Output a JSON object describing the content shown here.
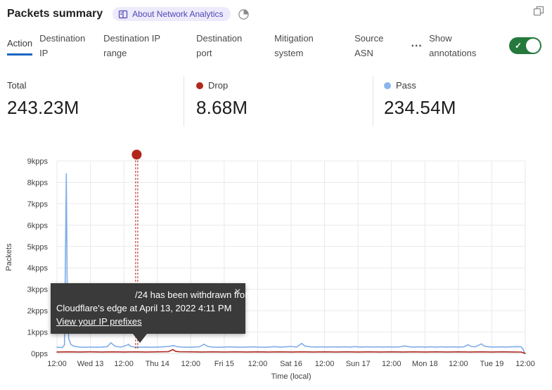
{
  "header": {
    "title": "Packets summary",
    "about_badge": "About Network Analytics"
  },
  "icons": {
    "check": "✓",
    "close": "✕",
    "ellipsis": "⋯"
  },
  "colors": {
    "accent_blue": "#1a66c2",
    "toggle_green": "#25793d",
    "drop_red": "#b2271c",
    "pass_blue": "#8ab5ec",
    "tooltip_bg": "#3a3a3a"
  },
  "tabs": {
    "items": [
      {
        "label": "Action",
        "active": true
      },
      {
        "label": "Destination IP",
        "active": false
      },
      {
        "label": "Destination IP range",
        "active": false
      },
      {
        "label": "Destination port",
        "active": false
      },
      {
        "label": "Mitigation system",
        "active": false
      },
      {
        "label": "Source ASN",
        "active": false
      }
    ],
    "more": "⋯",
    "show_annotations": "Show annotations",
    "annotations_on": true
  },
  "stats": {
    "total": {
      "label": "Total",
      "value": "243.23M"
    },
    "drop": {
      "label": "Drop",
      "value": "8.68M",
      "color": "#b2271c"
    },
    "pass": {
      "label": "Pass",
      "value": "234.54M",
      "color": "#8ab5ec"
    }
  },
  "annotation_tooltip": {
    "line1": "/24 has been withdrawn from",
    "line2": "Cloudflare's edge at April 13, 2022 4:11 PM",
    "link": "View your IP prefixes"
  },
  "chart_data": {
    "type": "line",
    "title": "Packets summary",
    "xlabel": "Time (local)",
    "ylabel": "Packets",
    "grid": true,
    "x_unit": "hours from Tue Apr 12 2022 12:00 local",
    "x_range_hours": [
      0,
      168
    ],
    "ylim_pps": [
      0,
      9000
    ],
    "x_tick_labels": [
      "12:00",
      "Wed 13",
      "12:00",
      "Thu 14",
      "12:00",
      "Fri 15",
      "12:00",
      "Sat 16",
      "12:00",
      "Sun 17",
      "12:00",
      "Mon 18",
      "12:00",
      "Tue 19",
      "12:00"
    ],
    "y_tick_labels": [
      "0pps",
      "1kpps",
      "2kpps",
      "3kpps",
      "4kpps",
      "5kpps",
      "6kpps",
      "7kpps",
      "8kpps",
      "9kpps"
    ],
    "legend": [
      {
        "name": "Drop",
        "color": "#b02720",
        "total": "8.68M"
      },
      {
        "name": "Pass",
        "color": "#7fadea",
        "total": "234.54M"
      }
    ],
    "series": [
      {
        "name": "Pass",
        "color": "#7fadea",
        "points": [
          [
            0,
            290
          ],
          [
            2,
            280
          ],
          [
            2.7,
            400
          ],
          [
            3.1,
            5200
          ],
          [
            3.35,
            8400
          ],
          [
            3.7,
            2400
          ],
          [
            4.2,
            700
          ],
          [
            5,
            420
          ],
          [
            6,
            340
          ],
          [
            8,
            300
          ],
          [
            10,
            290
          ],
          [
            12,
            300
          ],
          [
            14,
            290
          ],
          [
            16,
            300
          ],
          [
            18,
            320
          ],
          [
            19.4,
            500
          ],
          [
            20.2,
            400
          ],
          [
            21,
            330
          ],
          [
            23,
            300
          ],
          [
            25,
            380
          ],
          [
            25.7,
            430
          ],
          [
            26.5,
            330
          ],
          [
            28,
            300
          ],
          [
            30,
            290
          ],
          [
            32,
            300
          ],
          [
            34,
            290
          ],
          [
            36,
            300
          ],
          [
            38,
            310
          ],
          [
            40,
            330
          ],
          [
            41.8,
            370
          ],
          [
            43,
            320
          ],
          [
            45,
            300
          ],
          [
            47,
            290
          ],
          [
            49,
            300
          ],
          [
            51,
            310
          ],
          [
            52.8,
            430
          ],
          [
            54,
            330
          ],
          [
            56,
            300
          ],
          [
            58,
            290
          ],
          [
            60,
            300
          ],
          [
            62,
            310
          ],
          [
            64,
            300
          ],
          [
            66,
            290
          ],
          [
            68,
            300
          ],
          [
            70,
            310
          ],
          [
            72,
            300
          ],
          [
            74,
            290
          ],
          [
            76,
            300
          ],
          [
            78,
            320
          ],
          [
            80,
            300
          ],
          [
            82,
            310
          ],
          [
            84,
            330
          ],
          [
            86,
            300
          ],
          [
            87.8,
            470
          ],
          [
            89,
            340
          ],
          [
            91,
            310
          ],
          [
            93,
            300
          ],
          [
            95,
            310
          ],
          [
            97,
            300
          ],
          [
            99,
            310
          ],
          [
            101,
            300
          ],
          [
            103,
            310
          ],
          [
            105,
            300
          ],
          [
            107,
            320
          ],
          [
            109,
            300
          ],
          [
            111,
            310
          ],
          [
            113,
            300
          ],
          [
            115,
            310
          ],
          [
            117,
            300
          ],
          [
            119,
            310
          ],
          [
            121,
            300
          ],
          [
            123,
            310
          ],
          [
            124.8,
            350
          ],
          [
            126,
            320
          ],
          [
            128,
            300
          ],
          [
            130,
            310
          ],
          [
            132,
            300
          ],
          [
            134,
            310
          ],
          [
            136,
            300
          ],
          [
            138,
            310
          ],
          [
            140,
            300
          ],
          [
            142,
            310
          ],
          [
            144,
            300
          ],
          [
            146,
            310
          ],
          [
            147.5,
            410
          ],
          [
            148.5,
            330
          ],
          [
            150,
            310
          ],
          [
            152.3,
            450
          ],
          [
            153.3,
            340
          ],
          [
            155,
            310
          ],
          [
            157,
            300
          ],
          [
            159,
            310
          ],
          [
            161,
            300
          ],
          [
            163,
            310
          ],
          [
            165,
            320
          ],
          [
            166.5,
            310
          ],
          [
            167.3,
            180
          ],
          [
            167.7,
            0
          ]
        ]
      },
      {
        "name": "Drop",
        "color": "#b02720",
        "points": [
          [
            0,
            70
          ],
          [
            4,
            75
          ],
          [
            8,
            70
          ],
          [
            12,
            75
          ],
          [
            16,
            70
          ],
          [
            20,
            75
          ],
          [
            24,
            70
          ],
          [
            28,
            75
          ],
          [
            32,
            70
          ],
          [
            36,
            75
          ],
          [
            40,
            85
          ],
          [
            41.6,
            185
          ],
          [
            42.6,
            95
          ],
          [
            44,
            80
          ],
          [
            48,
            75
          ],
          [
            52,
            70
          ],
          [
            56,
            75
          ],
          [
            60,
            70
          ],
          [
            64,
            75
          ],
          [
            68,
            70
          ],
          [
            72,
            75
          ],
          [
            76,
            70
          ],
          [
            80,
            75
          ],
          [
            84,
            70
          ],
          [
            88,
            75
          ],
          [
            92,
            70
          ],
          [
            96,
            75
          ],
          [
            100,
            70
          ],
          [
            104,
            75
          ],
          [
            108,
            70
          ],
          [
            112,
            75
          ],
          [
            116,
            70
          ],
          [
            120,
            75
          ],
          [
            124,
            70
          ],
          [
            128,
            75
          ],
          [
            132,
            70
          ],
          [
            136,
            75
          ],
          [
            140,
            70
          ],
          [
            144,
            75
          ],
          [
            148,
            70
          ],
          [
            152,
            75
          ],
          [
            156,
            70
          ],
          [
            160,
            75
          ],
          [
            164,
            70
          ],
          [
            166.5,
            65
          ],
          [
            167.5,
            30
          ],
          [
            168,
            0
          ]
        ]
      }
    ],
    "annotation": {
      "t_hours": 28.6,
      "time_label": "April 13, 2022 4:11 PM",
      "marker_color": "#b2261c"
    }
  }
}
